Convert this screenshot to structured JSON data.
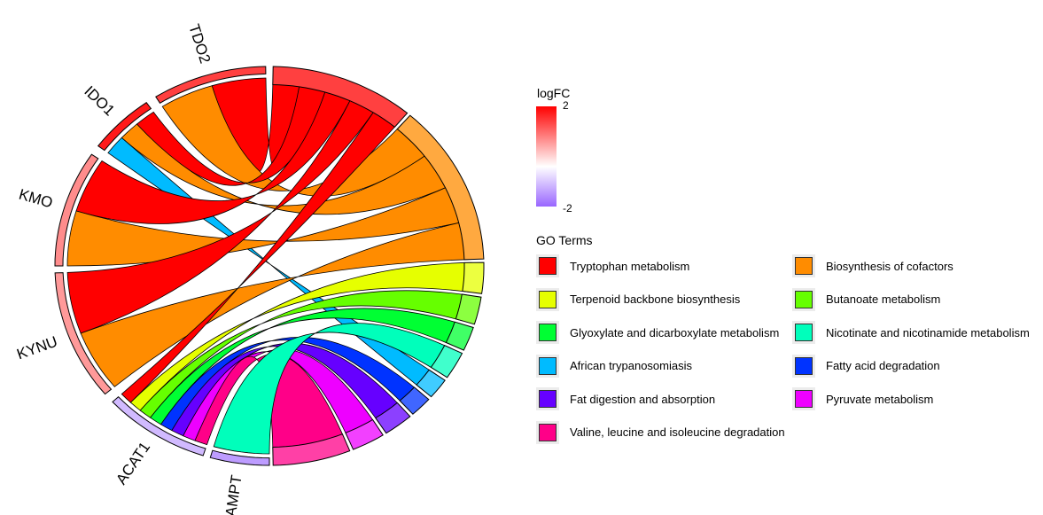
{
  "chart_data": {
    "type": "chord",
    "genes": [
      {
        "name": "TDO2",
        "logFC": 1.5
      },
      {
        "name": "IDO1",
        "logFC": 1.8
      },
      {
        "name": "KMO",
        "logFC": 0.9
      },
      {
        "name": "KYNU",
        "logFC": 0.8
      },
      {
        "name": "ACAT1",
        "logFC": -0.9
      },
      {
        "name": "NAMPT",
        "logFC": -1.3
      }
    ],
    "terms": [
      {
        "name": "Tryptophan metabolism",
        "color": "#ff0000"
      },
      {
        "name": "Biosynthesis of cofactors",
        "color": "#ff8c00"
      },
      {
        "name": "Terpenoid backbone biosynthesis",
        "color": "#e6ff00"
      },
      {
        "name": "Butanoate metabolism",
        "color": "#66ff00"
      },
      {
        "name": "Glyoxylate and dicarboxylate metabolism",
        "color": "#00ff33"
      },
      {
        "name": "Nicotinate and nicotinamide metabolism",
        "color": "#00ffbb"
      },
      {
        "name": "African trypanosomiasis",
        "color": "#00bbff"
      },
      {
        "name": "Fatty acid degradation",
        "color": "#0033ff"
      },
      {
        "name": "Fat digestion and absorption",
        "color": "#6600ff"
      },
      {
        "name": "Pyruvate metabolism",
        "color": "#ee00ff"
      },
      {
        "name": "Valine, leucine and isoleucine degradation",
        "color": "#ff0088"
      }
    ],
    "links": [
      {
        "gene": "TDO2",
        "term": "Tryptophan metabolism"
      },
      {
        "gene": "TDO2",
        "term": "Biosynthesis of cofactors"
      },
      {
        "gene": "IDO1",
        "term": "Tryptophan metabolism"
      },
      {
        "gene": "IDO1",
        "term": "Biosynthesis of cofactors"
      },
      {
        "gene": "IDO1",
        "term": "African trypanosomiasis"
      },
      {
        "gene": "KMO",
        "term": "Tryptophan metabolism"
      },
      {
        "gene": "KMO",
        "term": "Biosynthesis of cofactors"
      },
      {
        "gene": "KYNU",
        "term": "Tryptophan metabolism"
      },
      {
        "gene": "KYNU",
        "term": "Biosynthesis of cofactors"
      },
      {
        "gene": "ACAT1",
        "term": "Tryptophan metabolism"
      },
      {
        "gene": "ACAT1",
        "term": "Terpenoid backbone biosynthesis"
      },
      {
        "gene": "ACAT1",
        "term": "Butanoate metabolism"
      },
      {
        "gene": "ACAT1",
        "term": "Glyoxylate and dicarboxylate metabolism"
      },
      {
        "gene": "ACAT1",
        "term": "Fatty acid degradation"
      },
      {
        "gene": "ACAT1",
        "term": "Fat digestion and absorption"
      },
      {
        "gene": "ACAT1",
        "term": "Pyruvate metabolism"
      },
      {
        "gene": "ACAT1",
        "term": "Valine, leucine and isoleucine degradation"
      },
      {
        "gene": "NAMPT",
        "term": "Nicotinate and nicotinamide metabolism"
      }
    ],
    "colorbar": {
      "title": "logFC",
      "max_label": "2",
      "min_label": "-2",
      "high_color": "#ff0000",
      "mid_color": "#ffffff",
      "low_color": "#9966ff"
    },
    "legend_title": "GO Terms"
  }
}
